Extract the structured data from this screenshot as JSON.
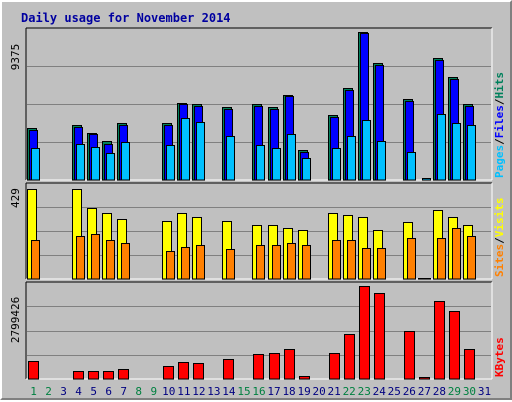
{
  "chart_data": {
    "type": "bar",
    "title": "Daily usage for November 2014",
    "colors": {
      "background": "#c0c0c0",
      "pages": "#00c0ff",
      "files": "#0000ff",
      "hits": "#00805c",
      "visits": "#ffff00",
      "sites": "#ff8000",
      "kbytes": "#ff0000",
      "weekend_day_label": "#008040",
      "weekday_label": "#000080"
    },
    "days": [
      1,
      2,
      3,
      4,
      5,
      6,
      7,
      8,
      9,
      10,
      11,
      12,
      13,
      14,
      15,
      16,
      17,
      18,
      19,
      20,
      21,
      22,
      23,
      24,
      25,
      26,
      27,
      28,
      29,
      30,
      31
    ],
    "weekend_days": [
      1,
      2,
      8,
      9,
      15,
      16,
      22,
      23,
      29,
      30
    ],
    "panels": [
      {
        "name": "hits-files-pages",
        "max_label": "9375",
        "max": 9375,
        "legend": [
          {
            "text": "Pages",
            "color": "#00c0ff"
          },
          {
            "text": "/",
            "color": "#000000"
          },
          {
            "text": "Files",
            "color": "#0000ff"
          },
          {
            "text": "/",
            "color": "#000000"
          },
          {
            "text": "Hits",
            "color": "#00805c"
          }
        ],
        "series": [
          {
            "name": "Hits",
            "color": "#00805c",
            "values": [
              3300,
              0,
              0,
              3500,
              3000,
              2500,
              3600,
              0,
              0,
              3600,
              4900,
              4800,
              0,
              4600,
              0,
              4800,
              4600,
              5400,
              1900,
              0,
              4100,
              5800,
              9375,
              7400,
              0,
              5100,
              0,
              7700,
              6500,
              4800,
              0
            ]
          },
          {
            "name": "Files",
            "color": "#0000ff",
            "values": [
              3150,
              0,
              0,
              3350,
              2900,
              2300,
              3500,
              0,
              0,
              3500,
              4800,
              4700,
              0,
              4500,
              0,
              4700,
              4500,
              5300,
              1800,
              0,
              4000,
              5700,
              9300,
              7300,
              0,
              5000,
              0,
              7600,
              6400,
              4700,
              0
            ]
          },
          {
            "name": "Pages",
            "color": "#00c0ff",
            "values": [
              2000,
              0,
              0,
              2300,
              2100,
              1700,
              2400,
              0,
              0,
              2200,
              3900,
              3700,
              0,
              2800,
              0,
              2200,
              2000,
              2900,
              1400,
              0,
              2000,
              2800,
              3800,
              2500,
              0,
              1800,
              100,
              4200,
              3600,
              3500,
              0
            ]
          }
        ]
      },
      {
        "name": "visits-sites",
        "max_label": "429",
        "max": 429,
        "legend": [
          {
            "text": "Sites",
            "color": "#ff8000"
          },
          {
            "text": "/",
            "color": "#000000"
          },
          {
            "text": "Visits",
            "color": "#ffff00"
          }
        ],
        "series": [
          {
            "name": "Visits",
            "color": "#ffff00",
            "values": [
              420,
              0,
              0,
              420,
              330,
              310,
              280,
              0,
              0,
              270,
              310,
              290,
              0,
              270,
              0,
              250,
              250,
              240,
              230,
              0,
              310,
              300,
              290,
              230,
              0,
              265,
              5,
              320,
              290,
              250,
              0
            ]
          },
          {
            "name": "Sites",
            "color": "#ff8000",
            "values": [
              180,
              0,
              0,
              200,
              210,
              180,
              170,
              0,
              0,
              130,
              150,
              160,
              0,
              140,
              0,
              160,
              160,
              170,
              160,
              0,
              180,
              180,
              145,
              145,
              0,
              190,
              5,
              190,
              240,
              200,
              0
            ]
          }
        ]
      },
      {
        "name": "kbytes",
        "max_label": "2799426",
        "max": 2799426,
        "legend": [
          {
            "text": "KBytes",
            "color": "#ff0000"
          }
        ],
        "series": [
          {
            "name": "KBytes",
            "color": "#ff0000",
            "values": [
              530000,
              0,
              0,
              230000,
              230000,
              230000,
              300000,
              0,
              0,
              400000,
              500000,
              470000,
              0,
              590000,
              0,
              750000,
              780000,
              900000,
              100000,
              0,
              780000,
              1350000,
              2799426,
              2600000,
              0,
              1450000,
              50000,
              2350000,
              2050000,
              900000,
              0
            ]
          }
        ]
      }
    ]
  }
}
